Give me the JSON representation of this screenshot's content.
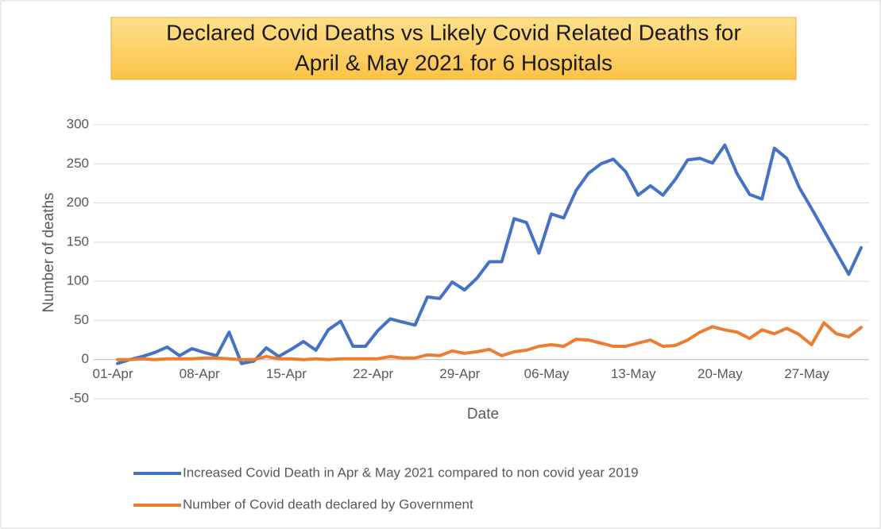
{
  "chart_data": {
    "type": "line",
    "title": [
      "Declared Covid Deaths vs Likely Covid Related Deaths for",
      "April & May 2021 for 6 Hospitals"
    ],
    "x_label": "Date",
    "y_label": "Number of deaths",
    "categories": [
      "01-Apr",
      null,
      null,
      null,
      null,
      null,
      null,
      "08-Apr",
      null,
      null,
      null,
      null,
      null,
      null,
      "15-Apr",
      null,
      null,
      null,
      null,
      null,
      null,
      "22-Apr",
      null,
      null,
      null,
      null,
      null,
      null,
      "29-Apr",
      null,
      null,
      null,
      null,
      null,
      null,
      "06-May",
      null,
      null,
      null,
      null,
      null,
      null,
      "13-May",
      null,
      null,
      null,
      null,
      null,
      null,
      "20-May",
      null,
      null,
      null,
      null,
      null,
      null,
      "27-May",
      null,
      null,
      null,
      null
    ],
    "series": [
      {
        "name": "Increased Covid Death in Apr & May 2021 compared to non covid year 2019",
        "color": "#4472c4",
        "values": [
          -5,
          0,
          4,
          9,
          16,
          5,
          14,
          9,
          5,
          35,
          -5,
          -2,
          15,
          4,
          13,
          23,
          12,
          38,
          49,
          17,
          17,
          37,
          52,
          48,
          44,
          80,
          78,
          99,
          89,
          104,
          125,
          125,
          180,
          175,
          136,
          186,
          181,
          216,
          238,
          250,
          256,
          240,
          210,
          222,
          210,
          230,
          255,
          257,
          251,
          274,
          237,
          211,
          205,
          270,
          257,
          220,
          193,
          165,
          137,
          109,
          143
        ]
      },
      {
        "name": "Number of Covid death declared by Government",
        "color": "#ed7d31",
        "values": [
          0,
          0,
          1,
          0,
          1,
          1,
          1,
          2,
          2,
          1,
          0,
          0,
          4,
          1,
          1,
          0,
          1,
          0,
          1,
          1,
          1,
          1,
          4,
          2,
          2,
          6,
          5,
          11,
          8,
          10,
          13,
          5,
          10,
          12,
          17,
          19,
          17,
          26,
          25,
          21,
          17,
          17,
          21,
          25,
          17,
          18,
          25,
          35,
          42,
          38,
          35,
          27,
          38,
          33,
          40,
          32,
          19,
          47,
          33,
          29,
          41
        ]
      }
    ],
    "ylim": [
      -50,
      300
    ],
    "yticks": [
      -50,
      0,
      50,
      100,
      150,
      200,
      250,
      300
    ],
    "grid": true,
    "legend": "bottom"
  }
}
